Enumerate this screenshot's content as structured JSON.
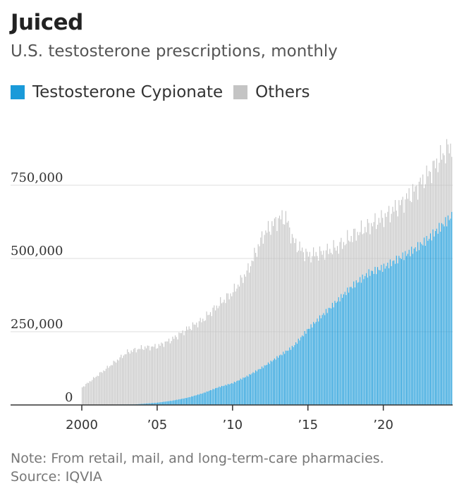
{
  "title": "Juiced",
  "subtitle": "U.S. testosterone prescriptions, monthly",
  "legend": [
    {
      "label": "Testosterone Cypionate",
      "color": "#1a9ad9"
    },
    {
      "label": "Others",
      "color": "#c4c4c4"
    }
  ],
  "note": "Note: From retail, mail, and long-term-care pharmacies.",
  "source": "Source: IQVIA",
  "colors": {
    "cypionate": "#1a9ad9",
    "others": "#c4c4c4",
    "grid": "#dddddd",
    "axis": "#333333"
  },
  "chart_data": {
    "type": "bar",
    "stacked": true,
    "title": "Juiced",
    "subtitle": "U.S. testosterone prescriptions, monthly",
    "xlabel": "",
    "ylabel": "",
    "ylim": [
      0,
      900000
    ],
    "grid": true,
    "y_ticks": [
      {
        "value": 0,
        "label": "0"
      },
      {
        "value": 250000,
        "label": "250,000"
      },
      {
        "value": 500000,
        "label": "500,000"
      },
      {
        "value": 750000,
        "label": "750,000"
      }
    ],
    "x_ticks": [
      {
        "value": 2000,
        "label": "2000"
      },
      {
        "value": 2005,
        "label": "’05"
      },
      {
        "value": 2010,
        "label": "’10"
      },
      {
        "value": 2015,
        "label": "’15"
      },
      {
        "value": 2020,
        "label": "’20"
      }
    ],
    "x_range": [
      2000,
      2024.6
    ],
    "series_names": [
      "Testosterone Cypionate",
      "Others"
    ],
    "total_anchors": [
      [
        2000.0,
        60000
      ],
      [
        2000.5,
        80000
      ],
      [
        2001.0,
        100000
      ],
      [
        2002.0,
        140000
      ],
      [
        2003.0,
        180000
      ],
      [
        2004.0,
        195000
      ],
      [
        2005.0,
        200000
      ],
      [
        2006.0,
        225000
      ],
      [
        2007.0,
        260000
      ],
      [
        2008.0,
        290000
      ],
      [
        2009.0,
        340000
      ],
      [
        2010.0,
        385000
      ],
      [
        2011.0,
        460000
      ],
      [
        2012.0,
        580000
      ],
      [
        2013.0,
        635000
      ],
      [
        2013.5,
        640000
      ],
      [
        2014.0,
        560000
      ],
      [
        2014.5,
        530000
      ],
      [
        2015.0,
        510000
      ],
      [
        2016.0,
        520000
      ],
      [
        2017.0,
        540000
      ],
      [
        2018.0,
        580000
      ],
      [
        2019.0,
        610000
      ],
      [
        2020.0,
        640000
      ],
      [
        2021.0,
        680000
      ],
      [
        2022.0,
        730000
      ],
      [
        2023.0,
        790000
      ],
      [
        2024.0,
        860000
      ],
      [
        2024.6,
        890000
      ]
    ],
    "cypionate_anchors": [
      [
        2000.0,
        0
      ],
      [
        2003.5,
        2000
      ],
      [
        2004.0,
        4000
      ],
      [
        2005.0,
        8000
      ],
      [
        2006.0,
        15000
      ],
      [
        2007.0,
        25000
      ],
      [
        2008.0,
        40000
      ],
      [
        2009.0,
        60000
      ],
      [
        2010.0,
        75000
      ],
      [
        2011.0,
        100000
      ],
      [
        2012.0,
        130000
      ],
      [
        2013.0,
        165000
      ],
      [
        2014.0,
        200000
      ],
      [
        2015.0,
        260000
      ],
      [
        2016.0,
        310000
      ],
      [
        2017.0,
        360000
      ],
      [
        2018.0,
        410000
      ],
      [
        2019.0,
        450000
      ],
      [
        2020.0,
        470000
      ],
      [
        2021.0,
        500000
      ],
      [
        2022.0,
        530000
      ],
      [
        2023.0,
        570000
      ],
      [
        2024.0,
        620000
      ],
      [
        2024.6,
        650000
      ]
    ]
  }
}
